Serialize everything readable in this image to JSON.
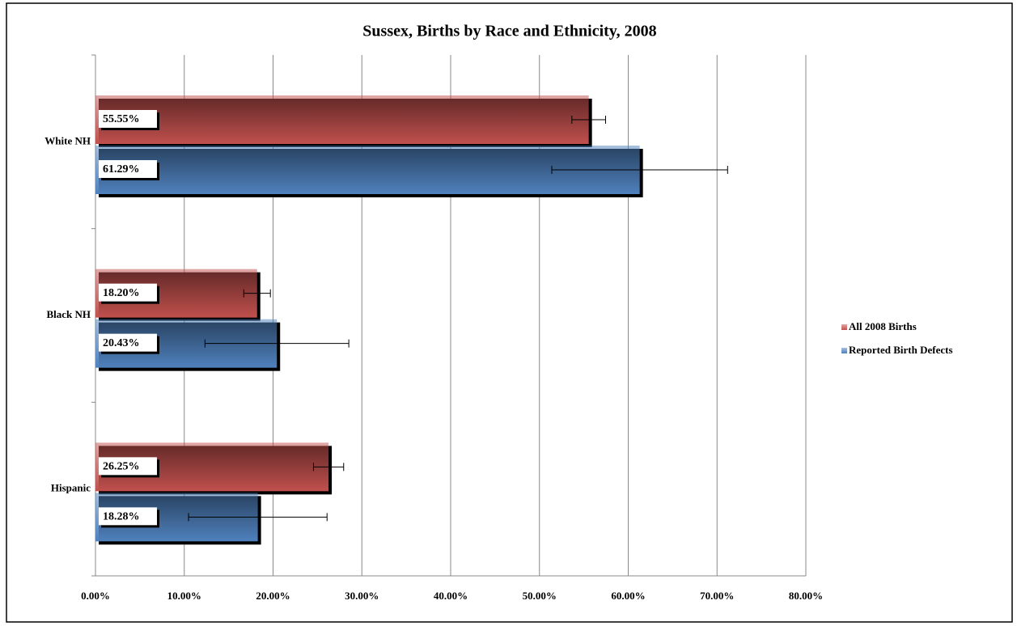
{
  "chart_data": {
    "type": "bar",
    "orientation": "horizontal",
    "title": "Sussex, Births by Race and Ethnicity, 2008",
    "categories": [
      "White NH",
      "Black NH",
      "Hispanic"
    ],
    "series": [
      {
        "name": "All 2008 Births",
        "color": "#c0504d",
        "values": [
          55.55,
          18.2,
          26.25
        ],
        "value_labels": [
          "55.55%",
          "18.20%",
          "26.25%"
        ],
        "errors": [
          1.9,
          1.5,
          1.7
        ]
      },
      {
        "name": "Reported Birth Defects",
        "color": "#4f81bd",
        "values": [
          61.29,
          20.43,
          18.28
        ],
        "value_labels": [
          "61.29%",
          "20.43%",
          "18.28%"
        ],
        "errors": [
          9.9,
          8.1,
          7.8
        ]
      }
    ],
    "xlim": [
      0,
      80
    ],
    "xticks": [
      {
        "value": 0,
        "label": "0.00%"
      },
      {
        "value": 10,
        "label": "10.00%"
      },
      {
        "value": 20,
        "label": "20.00%"
      },
      {
        "value": 30,
        "label": "30.00%"
      },
      {
        "value": 40,
        "label": "40.00%"
      },
      {
        "value": 50,
        "label": "50.00%"
      },
      {
        "value": 60,
        "label": "60.00%"
      },
      {
        "value": 70,
        "label": "70.00%"
      },
      {
        "value": 80,
        "label": "80.00%"
      }
    ],
    "grid": true,
    "legend": "right"
  }
}
